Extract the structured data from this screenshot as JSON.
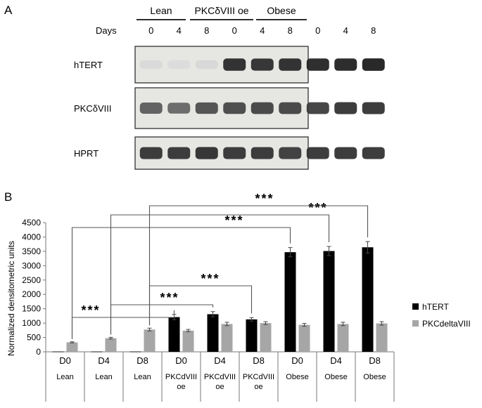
{
  "panel_a": {
    "label": "A",
    "groups": [
      "Lean",
      "PKCδVIII oe",
      "Obese"
    ],
    "days_label": "Days",
    "days": [
      "0",
      "4",
      "8",
      "0",
      "4",
      "8",
      "0",
      "4",
      "8"
    ],
    "blots": [
      {
        "label": "hTERT",
        "intensities": [
          0.04,
          0.03,
          0.05,
          0.9,
          0.88,
          0.9,
          0.92,
          0.93,
          0.95
        ]
      },
      {
        "label": "PKCδVIII",
        "intensities": [
          0.65,
          0.6,
          0.72,
          0.75,
          0.78,
          0.78,
          0.8,
          0.85,
          0.85
        ]
      },
      {
        "label": "HPRT",
        "intensities": [
          0.85,
          0.85,
          0.88,
          0.85,
          0.85,
          0.82,
          0.85,
          0.85,
          0.85
        ]
      }
    ]
  },
  "chart_data": {
    "type": "bar",
    "panel_label": "B",
    "ylabel": "Normalized densitometric units",
    "ylim": [
      0,
      4500
    ],
    "yticks": [
      0,
      500,
      1000,
      1500,
      2000,
      2500,
      3000,
      3500,
      4000,
      4500
    ],
    "categories": [
      {
        "day": "D0",
        "group": "Lean"
      },
      {
        "day": "D4",
        "group": "Lean"
      },
      {
        "day": "D8",
        "group": "Lean"
      },
      {
        "day": "D0",
        "group": "PKCdVIII oe"
      },
      {
        "day": "D4",
        "group": "PKCdVIII oe"
      },
      {
        "day": "D8",
        "group": "PKCdVIII oe"
      },
      {
        "day": "D0",
        "group": "Obese"
      },
      {
        "day": "D4",
        "group": "Obese"
      },
      {
        "day": "D8",
        "group": "Obese"
      }
    ],
    "series": [
      {
        "name": "hTERT",
        "color": "#000000",
        "values": [
          10,
          10,
          10,
          1210,
          1310,
          1130,
          3470,
          3510,
          3640
        ],
        "errors": [
          0,
          0,
          0,
          90,
          90,
          60,
          160,
          160,
          200
        ]
      },
      {
        "name": "PKCdeltaVIII",
        "color": "#a6a6a6",
        "values": [
          330,
          475,
          775,
          740,
          970,
          1000,
          940,
          970,
          990
        ],
        "errors": [
          20,
          30,
          50,
          40,
          60,
          50,
          50,
          60,
          60
        ]
      }
    ],
    "legend_position": "right",
    "significance": [
      {
        "from": 0,
        "to": 3,
        "label": "***"
      },
      {
        "from": 1,
        "to": 4,
        "label": "***"
      },
      {
        "from": 2,
        "to": 5,
        "label": "***"
      },
      {
        "from": 0,
        "to": 6,
        "label": "***"
      },
      {
        "from": 1,
        "to": 7,
        "label": "***"
      },
      {
        "from": 2,
        "to": 8,
        "label": "***"
      }
    ]
  }
}
